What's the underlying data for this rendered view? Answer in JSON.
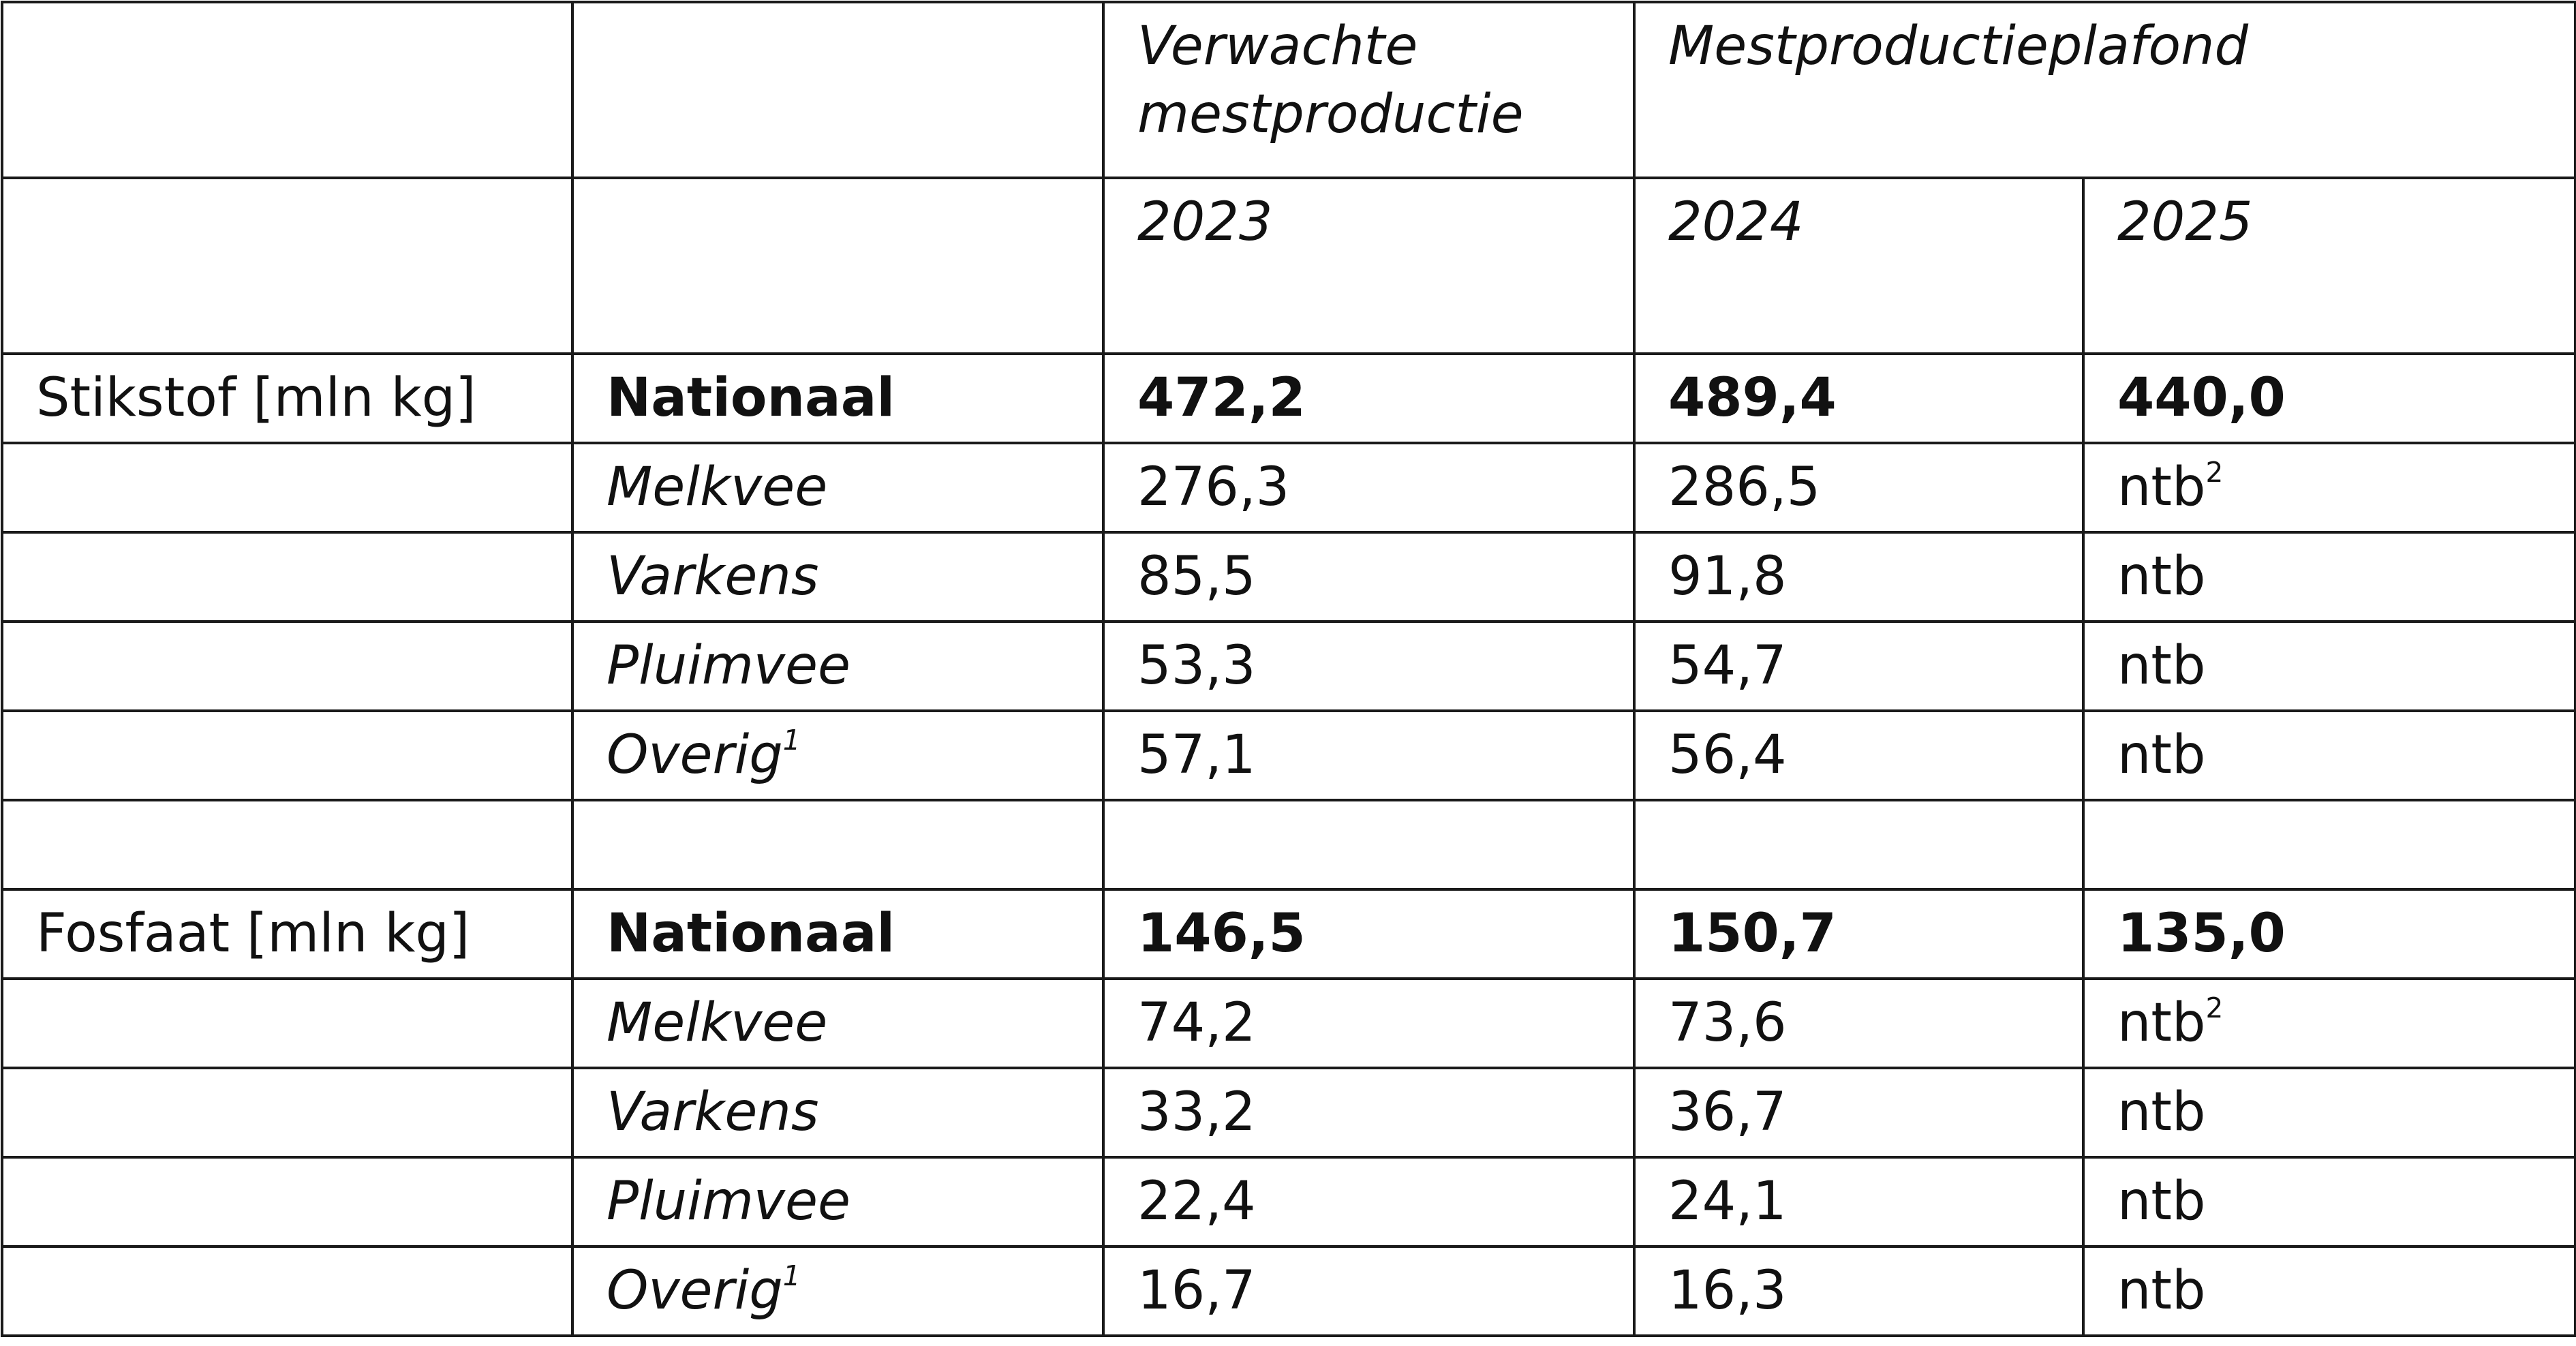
{
  "header": {
    "col3_line1": "Verwachte",
    "col3_line2": "mestproductie",
    "col4": "Mestproductieplafond",
    "year_2023": "2023",
    "year_2024": "2024",
    "year_2025": "2025"
  },
  "sections": [
    {
      "label": "Stikstof [mln kg]",
      "rows": [
        {
          "name": "Nationaal",
          "sup": "",
          "v2023": "472,2",
          "v2024": "489,4",
          "v2025": "440,0",
          "v2025_sup": ""
        },
        {
          "name": "Melkvee",
          "sup": "",
          "v2023": "276,3",
          "v2024": "286,5",
          "v2025": "ntb",
          "v2025_sup": "2"
        },
        {
          "name": "Varkens",
          "sup": "",
          "v2023": "85,5",
          "v2024": "91,8",
          "v2025": "ntb",
          "v2025_sup": ""
        },
        {
          "name": "Pluimvee",
          "sup": "",
          "v2023": "53,3",
          "v2024": "54,7",
          "v2025": "ntb",
          "v2025_sup": ""
        },
        {
          "name": "Overig",
          "sup": "1",
          "v2023": "57,1",
          "v2024": "56,4",
          "v2025": "ntb",
          "v2025_sup": ""
        }
      ]
    },
    {
      "label": "Fosfaat [mln kg]",
      "rows": [
        {
          "name": "Nationaal",
          "sup": "",
          "v2023": "146,5",
          "v2024": "150,7",
          "v2025": "135,0",
          "v2025_sup": ""
        },
        {
          "name": "Melkvee",
          "sup": "",
          "v2023": "74,2",
          "v2024": "73,6",
          "v2025": "ntb",
          "v2025_sup": "2"
        },
        {
          "name": "Varkens",
          "sup": "",
          "v2023": "33,2",
          "v2024": "36,7",
          "v2025": "ntb",
          "v2025_sup": ""
        },
        {
          "name": "Pluimvee",
          "sup": "",
          "v2023": "22,4",
          "v2024": "24,1",
          "v2025": "ntb",
          "v2025_sup": ""
        },
        {
          "name": "Overig",
          "sup": "1",
          "v2023": "16,7",
          "v2024": "16,3",
          "v2025": "ntb",
          "v2025_sup": ""
        }
      ]
    }
  ]
}
